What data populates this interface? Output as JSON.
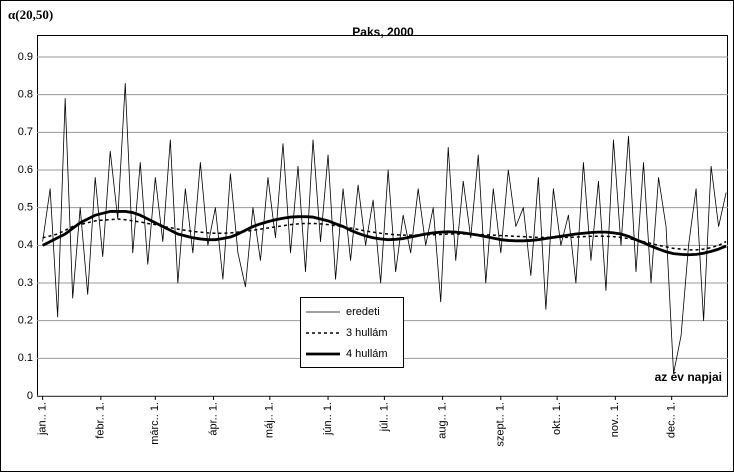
{
  "chart_data": {
    "type": "line",
    "title": "Paks, 2000",
    "y_label": "α(20,50)",
    "annotation": "az év napjai",
    "x": [
      1,
      5,
      9,
      13,
      17,
      21,
      25,
      29,
      33,
      37,
      41,
      45,
      49,
      53,
      57,
      61,
      65,
      69,
      73,
      77,
      81,
      85,
      89,
      93,
      97,
      101,
      105,
      109,
      113,
      117,
      121,
      125,
      129,
      133,
      137,
      141,
      145,
      149,
      153,
      157,
      161,
      165,
      169,
      173,
      177,
      181,
      185,
      189,
      193,
      197,
      201,
      205,
      209,
      213,
      217,
      221,
      225,
      229,
      233,
      237,
      241,
      245,
      249,
      253,
      257,
      261,
      265,
      269,
      273,
      277,
      281,
      285,
      289,
      293,
      297,
      301,
      305,
      309,
      313,
      317,
      321,
      325,
      329,
      333,
      337,
      341,
      345,
      349,
      353,
      357,
      361,
      365
    ],
    "xlim": [
      -2,
      366
    ],
    "xticks": [
      {
        "value": 1,
        "label": "jan.. 1."
      },
      {
        "value": 32,
        "label": "febr.. 1."
      },
      {
        "value": 61,
        "label": "márc.. 1."
      },
      {
        "value": 92,
        "label": "ápr.. 1."
      },
      {
        "value": 122,
        "label": "máj.. 1."
      },
      {
        "value": 153,
        "label": "jún.. 1."
      },
      {
        "value": 183,
        "label": "júl.. 1."
      },
      {
        "value": 214,
        "label": "aug.. 1."
      },
      {
        "value": 245,
        "label": "szept.. 1."
      },
      {
        "value": 275,
        "label": "okt.. 1."
      },
      {
        "value": 306,
        "label": "nov.. 1."
      },
      {
        "value": 336,
        "label": "dec.. 1."
      }
    ],
    "ylim": [
      0,
      0.9
    ],
    "yticks": [
      0,
      0.1,
      0.2,
      0.3,
      0.4,
      0.5,
      0.6,
      0.7,
      0.8,
      0.9
    ],
    "grid": true,
    "series": [
      {
        "name": "eredeti",
        "color": "#000000",
        "style": "thin",
        "values": [
          0.41,
          0.55,
          0.21,
          0.79,
          0.26,
          0.5,
          0.27,
          0.58,
          0.37,
          0.65,
          0.47,
          0.83,
          0.38,
          0.62,
          0.35,
          0.58,
          0.41,
          0.68,
          0.3,
          0.55,
          0.38,
          0.62,
          0.4,
          0.5,
          0.31,
          0.59,
          0.38,
          0.29,
          0.5,
          0.36,
          0.58,
          0.42,
          0.67,
          0.38,
          0.61,
          0.33,
          0.68,
          0.41,
          0.64,
          0.31,
          0.55,
          0.36,
          0.56,
          0.4,
          0.52,
          0.3,
          0.6,
          0.33,
          0.48,
          0.38,
          0.55,
          0.4,
          0.5,
          0.25,
          0.66,
          0.36,
          0.57,
          0.42,
          0.64,
          0.3,
          0.55,
          0.38,
          0.6,
          0.45,
          0.5,
          0.32,
          0.58,
          0.23,
          0.55,
          0.4,
          0.48,
          0.3,
          0.62,
          0.36,
          0.57,
          0.28,
          0.68,
          0.4,
          0.69,
          0.33,
          0.62,
          0.3,
          0.58,
          0.45,
          0.06,
          0.16,
          0.4,
          0.55,
          0.2,
          0.61,
          0.45,
          0.54
        ]
      },
      {
        "name": "3 hullám",
        "color": "#000000",
        "style": "dashed",
        "values": [
          0.42,
          0.425,
          0.43,
          0.44,
          0.45,
          0.455,
          0.46,
          0.465,
          0.467,
          0.468,
          0.47,
          0.468,
          0.465,
          0.462,
          0.458,
          0.455,
          0.45,
          0.447,
          0.443,
          0.44,
          0.437,
          0.435,
          0.433,
          0.432,
          0.432,
          0.433,
          0.435,
          0.437,
          0.44,
          0.443,
          0.446,
          0.449,
          0.452,
          0.455,
          0.457,
          0.458,
          0.458,
          0.457,
          0.455,
          0.452,
          0.449,
          0.446,
          0.442,
          0.438,
          0.435,
          0.432,
          0.43,
          0.428,
          0.427,
          0.427,
          0.427,
          0.428,
          0.428,
          0.429,
          0.43,
          0.43,
          0.43,
          0.43,
          0.429,
          0.428,
          0.427,
          0.426,
          0.425,
          0.424,
          0.423,
          0.422,
          0.421,
          0.421,
          0.421,
          0.421,
          0.421,
          0.422,
          0.423,
          0.424,
          0.424,
          0.424,
          0.423,
          0.421,
          0.418,
          0.414,
          0.41,
          0.405,
          0.4,
          0.396,
          0.392,
          0.39,
          0.388,
          0.388,
          0.39,
          0.394,
          0.4,
          0.41
        ]
      },
      {
        "name": "4 hullám",
        "color": "#000000",
        "style": "thick",
        "values": [
          0.4,
          0.41,
          0.42,
          0.43,
          0.445,
          0.46,
          0.47,
          0.48,
          0.485,
          0.49,
          0.49,
          0.49,
          0.487,
          0.48,
          0.47,
          0.46,
          0.45,
          0.44,
          0.43,
          0.425,
          0.42,
          0.417,
          0.415,
          0.415,
          0.418,
          0.422,
          0.43,
          0.44,
          0.45,
          0.457,
          0.463,
          0.468,
          0.472,
          0.475,
          0.476,
          0.476,
          0.475,
          0.47,
          0.465,
          0.457,
          0.45,
          0.44,
          0.432,
          0.425,
          0.42,
          0.417,
          0.415,
          0.416,
          0.418,
          0.422,
          0.426,
          0.43,
          0.433,
          0.435,
          0.436,
          0.435,
          0.433,
          0.43,
          0.427,
          0.423,
          0.419,
          0.415,
          0.413,
          0.412,
          0.412,
          0.413,
          0.415,
          0.418,
          0.421,
          0.424,
          0.427,
          0.43,
          0.432,
          0.434,
          0.435,
          0.435,
          0.433,
          0.43,
          0.424,
          0.415,
          0.407,
          0.398,
          0.39,
          0.383,
          0.378,
          0.376,
          0.375,
          0.376,
          0.379,
          0.384,
          0.39,
          0.398
        ]
      }
    ]
  }
}
